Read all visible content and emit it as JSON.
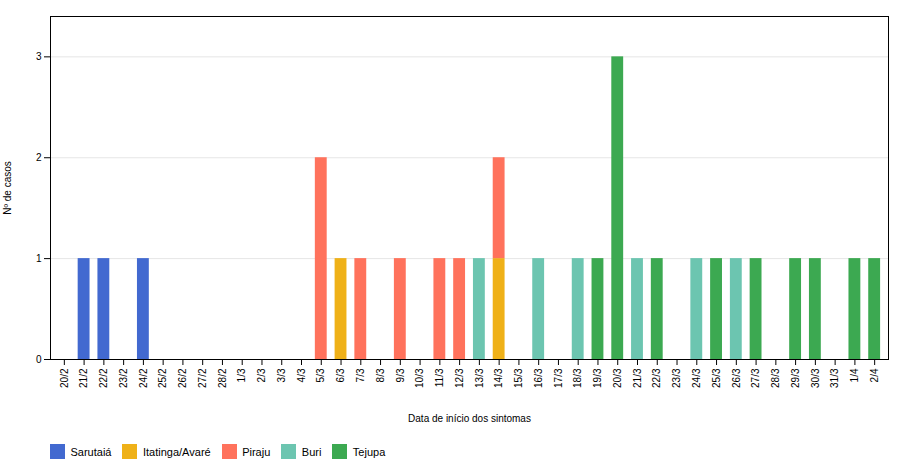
{
  "chart_data": {
    "type": "bar",
    "stacked": true,
    "xlabel": "Data de início dos sintomas",
    "ylabel": "Nº de casos",
    "categories": [
      "20/2",
      "21/2",
      "22/2",
      "23/2",
      "24/2",
      "25/2",
      "26/2",
      "27/2",
      "28/2",
      "1/3",
      "2/3",
      "3/3",
      "4/3",
      "5/3",
      "6/3",
      "7/3",
      "8/3",
      "9/3",
      "10/3",
      "11/3",
      "12/3",
      "13/3",
      "14/3",
      "15/3",
      "16/3",
      "17/3",
      "18/3",
      "19/3",
      "20/3",
      "21/3",
      "22/3",
      "23/3",
      "24/3",
      "25/3",
      "26/3",
      "27/3",
      "28/3",
      "29/3",
      "30/3",
      "31/3",
      "1/4",
      "2/4"
    ],
    "series": [
      {
        "name": "Sarutaiá",
        "values": [
          0,
          1,
          1,
          0,
          1,
          0,
          0,
          0,
          0,
          0,
          0,
          0,
          0,
          0,
          0,
          0,
          0,
          0,
          0,
          0,
          0,
          0,
          0,
          0,
          0,
          0,
          0,
          0,
          0,
          0,
          0,
          0,
          0,
          0,
          0,
          0,
          0,
          0,
          0,
          0,
          0,
          0
        ]
      },
      {
        "name": "Itatinga/Avaré",
        "values": [
          0,
          0,
          0,
          0,
          0,
          0,
          0,
          0,
          0,
          0,
          0,
          0,
          0,
          0,
          1,
          0,
          0,
          0,
          0,
          0,
          0,
          0,
          1,
          0,
          0,
          0,
          0,
          0,
          0,
          0,
          0,
          0,
          0,
          0,
          0,
          0,
          0,
          0,
          0,
          0,
          0,
          0
        ]
      },
      {
        "name": "Piraju",
        "values": [
          0,
          0,
          0,
          0,
          0,
          0,
          0,
          0,
          0,
          0,
          0,
          0,
          0,
          2,
          0,
          1,
          0,
          1,
          0,
          1,
          1,
          0,
          1,
          0,
          0,
          0,
          0,
          0,
          0,
          0,
          0,
          0,
          0,
          0,
          0,
          0,
          0,
          0,
          0,
          0,
          0,
          0
        ]
      },
      {
        "name": "Buri",
        "values": [
          0,
          0,
          0,
          0,
          0,
          0,
          0,
          0,
          0,
          0,
          0,
          0,
          0,
          0,
          0,
          0,
          0,
          0,
          0,
          0,
          0,
          1,
          0,
          0,
          1,
          0,
          1,
          0,
          0,
          1,
          0,
          0,
          1,
          0,
          1,
          0,
          0,
          0,
          0,
          0,
          0,
          0
        ]
      },
      {
        "name": "Tejupa",
        "values": [
          0,
          0,
          0,
          0,
          0,
          0,
          0,
          0,
          0,
          0,
          0,
          0,
          0,
          0,
          0,
          0,
          0,
          0,
          0,
          0,
          0,
          0,
          0,
          0,
          0,
          0,
          0,
          1,
          3,
          0,
          1,
          0,
          0,
          1,
          0,
          1,
          0,
          1,
          1,
          0,
          1,
          1
        ]
      }
    ],
    "ylim": [
      0,
      3.4
    ],
    "yticks": [
      0,
      1,
      2,
      3
    ],
    "grid": true,
    "legend": "bottom"
  }
}
